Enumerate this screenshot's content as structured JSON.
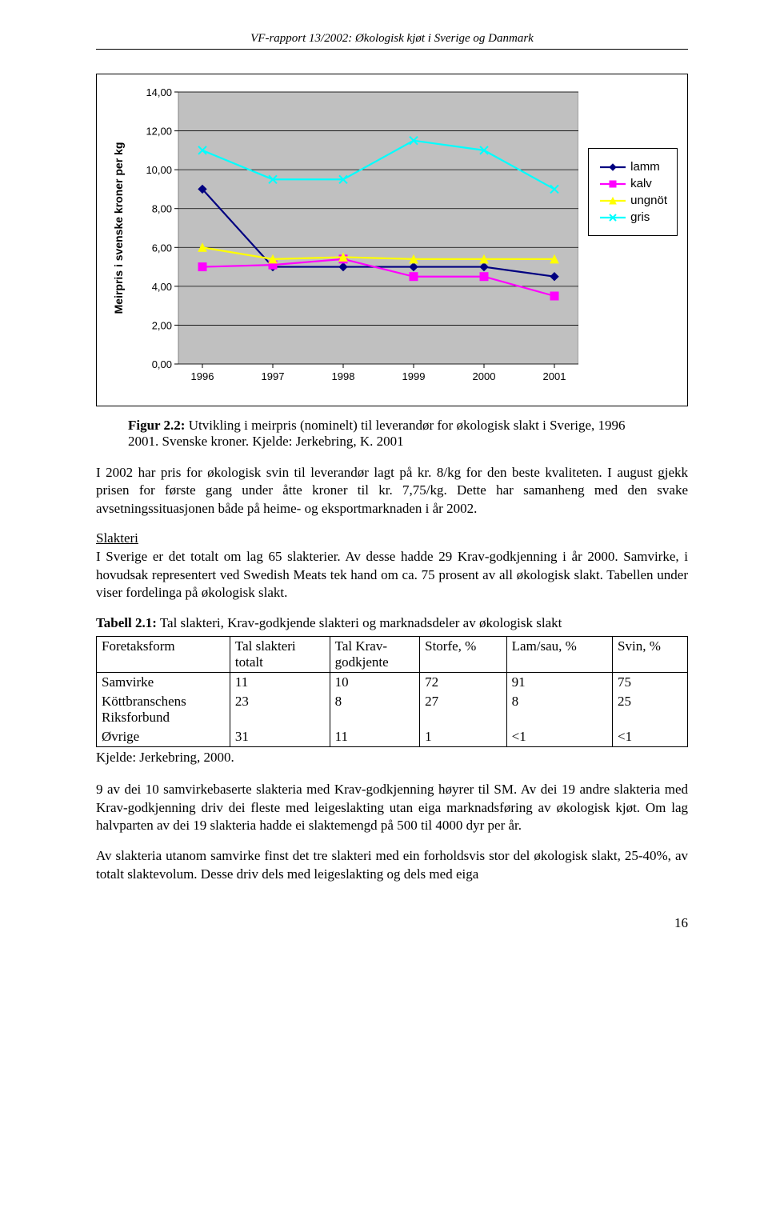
{
  "header": {
    "title": "VF-rapport 13/2002: Økologisk kjøt i Sverige og Danmark"
  },
  "chart": {
    "type": "line",
    "ylabel": "Meirpris i svenske kroner per kg",
    "categories": [
      "1996",
      "1997",
      "1998",
      "1999",
      "2000",
      "2001"
    ],
    "ylim": [
      0,
      14
    ],
    "ytick_step": 2,
    "ytick_labels": [
      "0,00",
      "2,00",
      "4,00",
      "6,00",
      "8,00",
      "10,00",
      "12,00",
      "14,00"
    ],
    "plot_bg": "#c0c0c0",
    "grid_color": "#000000",
    "series": [
      {
        "name": "lamm",
        "color": "#000080",
        "marker": "diamond",
        "values": [
          9.0,
          5.0,
          5.0,
          5.0,
          5.0,
          4.5
        ]
      },
      {
        "name": "kalv",
        "color": "#ff00ff",
        "marker": "square",
        "values": [
          5.0,
          5.1,
          5.4,
          4.5,
          4.5,
          3.5
        ]
      },
      {
        "name": "ungnöt",
        "color": "#ffff00",
        "marker": "triangle",
        "values": [
          6.0,
          5.4,
          5.5,
          5.4,
          5.4,
          5.4
        ]
      },
      {
        "name": "gris",
        "color": "#00ffff",
        "marker": "x",
        "values": [
          11.0,
          9.5,
          9.5,
          11.5,
          11.0,
          9.0
        ]
      }
    ],
    "label_fontsize": 14,
    "tick_fontsize": 13
  },
  "caption1": {
    "label": "Figur 2.2:",
    "text": " Utvikling i meirpris (nominelt) til leverandør for økologisk slakt i Sverige, 1996 2001. Svenske kroner. Kjelde: Jerkebring, K. 2001"
  },
  "para1": "I 2002 har pris for økologisk svin til leverandør lagt på kr. 8/kg for den beste kvaliteten. I august gjekk prisen for første gang under åtte kroner til kr. 7,75/kg. Dette har samanheng med den svake avsetningssituasjonen både på heime- og eksportmarknaden i år 2002.",
  "heading_slakteri": "Slakteri",
  "para2": "I Sverige er det totalt om lag 65 slakterier. Av desse hadde 29 Krav-godkjenning i år 2000. Samvirke, i hovudsak representert ved Swedish Meats tek hand om ca. 75 prosent av all økologisk slakt. Tabellen under viser fordelinga på økologisk slakt.",
  "table": {
    "caption_label": "Tabell 2.1:",
    "caption_text": " Tal slakteri, Krav-godkjende slakteri og marknadsdeler av økologisk slakt",
    "columns": [
      "Foretaksform",
      "Tal slakteri totalt",
      "Tal Krav-godkjente",
      "Storfe, %",
      "Lam/sau, %",
      "Svin, %"
    ],
    "rows": [
      [
        "Samvirke",
        "11",
        "10",
        "72",
        "91",
        "75"
      ],
      [
        "Köttbranschens Riksforbund",
        "23",
        "8",
        "27",
        "8",
        "25"
      ],
      [
        "Øvrige",
        "31",
        "11",
        "1",
        "<1",
        "<1"
      ]
    ],
    "source": "Kjelde: Jerkebring, 2000."
  },
  "para3": "9 av dei 10 samvirkebaserte slakteria med Krav-godkjenning høyrer til SM. Av dei 19 andre slakteria med Krav-godkjenning driv dei fleste med leigeslakting utan eiga marknadsføring av økologisk kjøt. Om lag halvparten av dei 19 slakteria hadde ei slaktemengd på 500 til 4000 dyr per år.",
  "para4": "Av slakteria utanom samvirke finst det tre slakteri med ein forholdsvis stor del økologisk slakt, 25-40%, av totalt slaktevolum. Desse driv dels med leigeslakting og dels med eiga",
  "page_number": "16"
}
